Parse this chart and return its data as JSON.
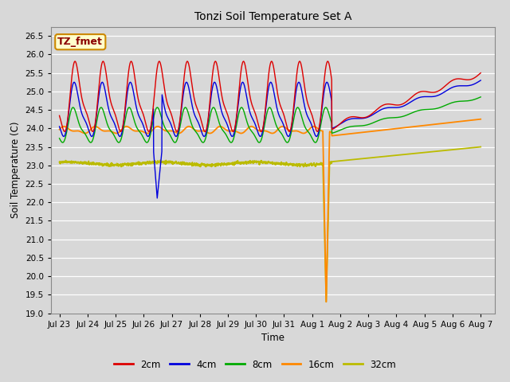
{
  "title": "Tonzi Soil Temperature Set A",
  "xlabel": "Time",
  "ylabel": "Soil Temperature (C)",
  "ylim": [
    19.0,
    26.75
  ],
  "yticks": [
    19.0,
    19.5,
    20.0,
    20.5,
    21.0,
    21.5,
    22.0,
    22.5,
    23.0,
    23.5,
    24.0,
    24.5,
    25.0,
    25.5,
    26.0,
    26.5
  ],
  "bg_color": "#d8d8d8",
  "plot_bg_color": "#d8d8d8",
  "grid_color": "#ffffff",
  "colors": {
    "2cm": "#dd0000",
    "4cm": "#0000dd",
    "8cm": "#00aa00",
    "16cm": "#ff8800",
    "32cm": "#bbbb00"
  },
  "annotation_text": "TZ_fmet",
  "annotation_bg": "#ffffcc",
  "annotation_border": "#cc8800",
  "xtick_labels": [
    "Jul 23",
    "Jul 24",
    "Jul 25",
    "Jul 26",
    "Jul 27",
    "Jul 28",
    "Jul 29",
    "Jul 30",
    "Jul 31",
    "Aug 1",
    "Aug 2",
    "Aug 3",
    "Aug 4",
    "Aug 5",
    "Aug 6",
    "Aug 7"
  ]
}
